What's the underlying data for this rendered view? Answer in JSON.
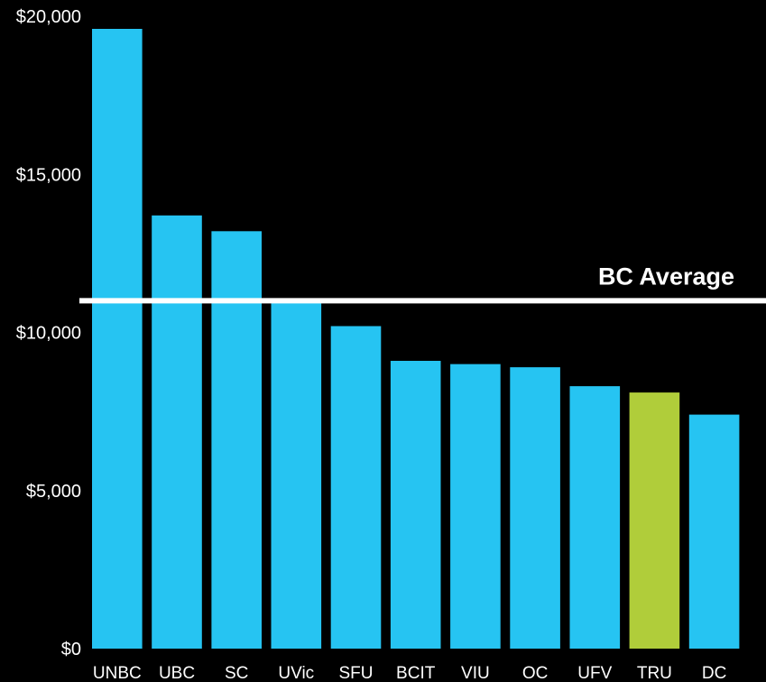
{
  "chart_data": {
    "type": "bar",
    "categories": [
      "UNBC",
      "UBC",
      "SC",
      "UVic",
      "SFU",
      "BCIT",
      "VIU",
      "OC",
      "UFV",
      "TRU",
      "DC"
    ],
    "values": [
      19600,
      13700,
      13200,
      11000,
      10200,
      9100,
      9000,
      8900,
      8300,
      8100,
      7400
    ],
    "highlight": {
      "category": "TRU",
      "color": "#b0cd3a"
    },
    "bar_color": "#26c4f2",
    "y_ticks": [
      {
        "value": 0,
        "label": "$0"
      },
      {
        "value": 5000,
        "label": "$5,000"
      },
      {
        "value": 10000,
        "label": "$10,000"
      },
      {
        "value": 15000,
        "label": "$15,000"
      },
      {
        "value": 20000,
        "label": "$20,000"
      }
    ],
    "ylim": [
      0,
      20000
    ],
    "grid": false,
    "reference_line": {
      "label": "BC Average",
      "value": 11000,
      "color": "#ffffff"
    },
    "background": "#000000",
    "text_color": "#ffffff"
  }
}
